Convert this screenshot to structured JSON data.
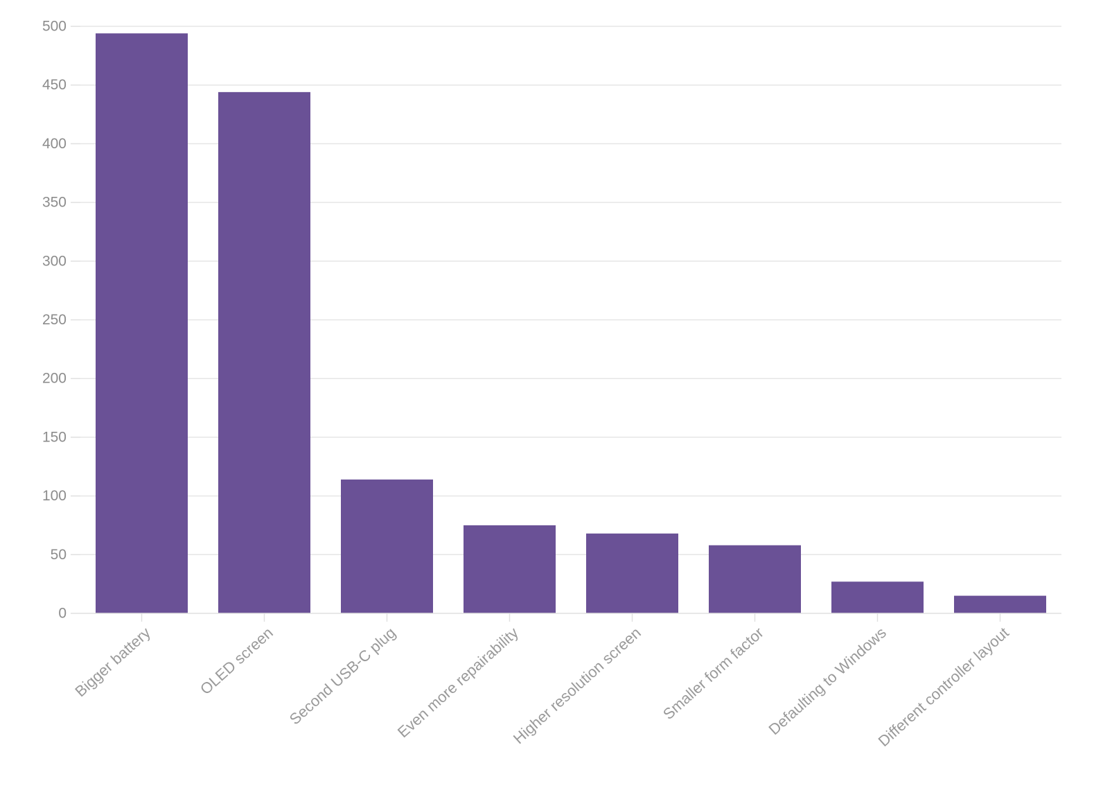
{
  "chart_data": {
    "type": "bar",
    "title": "",
    "xlabel": "",
    "ylabel": "",
    "categories": [
      "Bigger battery",
      "OLED screen",
      "Second USB-C plug",
      "Even more repairability",
      "Higher resolution screen",
      "Smaller form factor",
      "Defaulting to Windows",
      "Different controller layout"
    ],
    "values": [
      494,
      444,
      114,
      75,
      68,
      58,
      27,
      15
    ],
    "ylim": [
      0,
      500
    ],
    "yticks": [
      0,
      50,
      100,
      150,
      200,
      250,
      300,
      350,
      400,
      450,
      500
    ],
    "grid": true,
    "bar_color": "#6a5196"
  }
}
